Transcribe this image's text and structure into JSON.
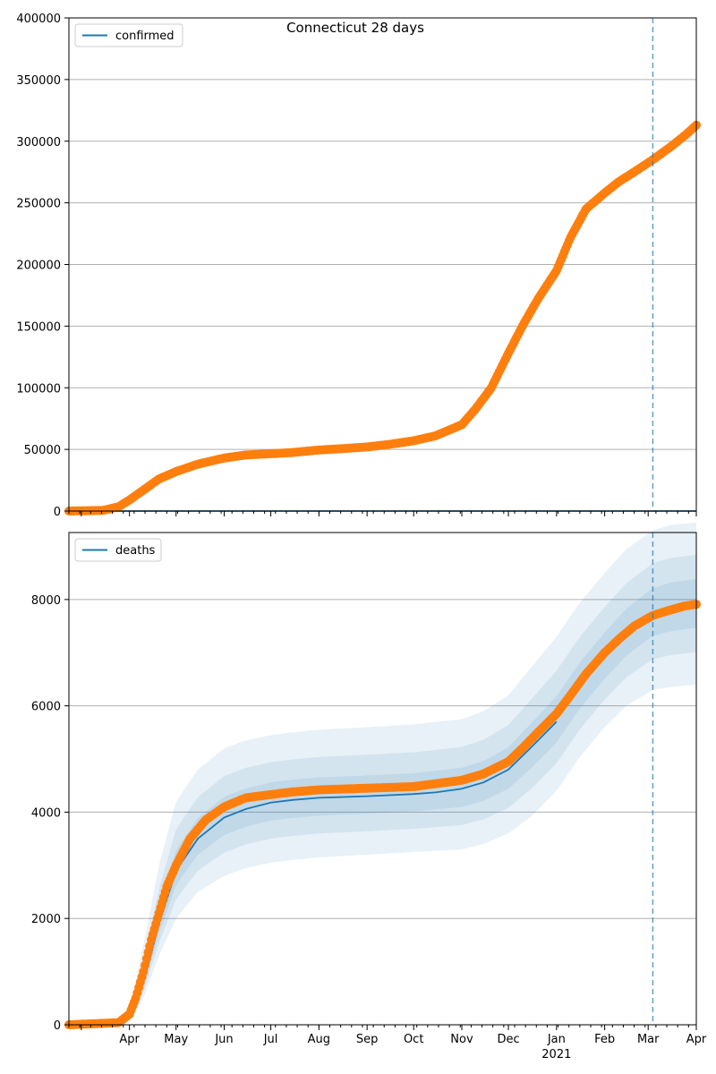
{
  "figure_title": "Connecticut 28 days",
  "chart_data": [
    {
      "type": "line",
      "legend": [
        "confirmed"
      ],
      "legend_placement": "top-left",
      "grid": "horizontal",
      "ylim": [
        0,
        400000
      ],
      "yticks": [
        0,
        50000,
        100000,
        150000,
        200000,
        250000,
        300000,
        350000,
        400000
      ],
      "xlim": [
        "2020-02-22",
        "2021-04-01"
      ],
      "forecast_date": "2021-03-04",
      "series": [
        {
          "name": "confirmed",
          "kind": "model-line",
          "color": "#1f77b4",
          "dates": [
            "2020-02-22",
            "2021-04-01"
          ],
          "values": [
            0,
            0
          ]
        },
        {
          "kind": "observed-points",
          "color": "#ff7f0e",
          "dates": [
            "2020-02-22",
            "2020-03-15",
            "2020-03-25",
            "2020-04-01",
            "2020-04-10",
            "2020-04-20",
            "2020-05-01",
            "2020-05-15",
            "2020-06-01",
            "2020-06-15",
            "2020-07-01",
            "2020-07-15",
            "2020-08-01",
            "2020-08-15",
            "2020-09-01",
            "2020-09-15",
            "2020-10-01",
            "2020-10-15",
            "2020-11-01",
            "2020-11-10",
            "2020-11-20",
            "2020-12-01",
            "2020-12-10",
            "2020-12-20",
            "2021-01-01",
            "2021-01-10",
            "2021-01-20",
            "2021-02-01",
            "2021-02-10",
            "2021-02-20",
            "2021-03-04",
            "2021-03-15",
            "2021-03-25",
            "2021-04-01"
          ],
          "values": [
            0,
            500,
            3500,
            9000,
            17000,
            26000,
            32000,
            38000,
            43000,
            45500,
            46500,
            47500,
            49500,
            50500,
            52000,
            54000,
            57000,
            61000,
            70000,
            83000,
            100000,
            128000,
            150000,
            172000,
            195000,
            222000,
            245000,
            258000,
            267000,
            275000,
            285000,
            295000,
            305000,
            313000
          ]
        }
      ]
    },
    {
      "type": "line",
      "legend": [
        "deaths"
      ],
      "legend_placement": "top-left",
      "grid": "horizontal",
      "ylim": [
        0,
        9260
      ],
      "yticks": [
        0,
        2000,
        4000,
        6000,
        8000
      ],
      "xlim": [
        "2020-02-22",
        "2021-04-01"
      ],
      "forecast_date": "2021-03-04",
      "x_tick_labels": [
        "Apr",
        "May",
        "Jun",
        "Jul",
        "Aug",
        "Sep",
        "Oct",
        "Nov",
        "Dec",
        "Jan",
        "Feb",
        "Mar",
        "Apr"
      ],
      "x_year_label": "2021",
      "series": [
        {
          "name": "deaths",
          "kind": "model-median",
          "color": "#1f77b4",
          "dates": [
            "2020-02-22",
            "2020-03-20",
            "2020-04-01",
            "2020-04-10",
            "2020-04-20",
            "2020-05-01",
            "2020-05-15",
            "2020-06-01",
            "2020-06-15",
            "2020-07-01",
            "2020-07-15",
            "2020-08-01",
            "2020-09-01",
            "2020-10-01",
            "2020-10-15",
            "2020-11-01",
            "2020-11-15",
            "2020-12-01",
            "2020-12-15",
            "2021-01-01"
          ],
          "values": [
            0,
            20,
            150,
            800,
            1900,
            2900,
            3500,
            3900,
            4060,
            4180,
            4230,
            4270,
            4300,
            4340,
            4370,
            4440,
            4560,
            4800,
            5200,
            5700
          ]
        },
        {
          "kind": "uncertainty-band",
          "color": "#1f77b4",
          "dates": [
            "2020-02-22",
            "2020-03-20",
            "2020-04-01",
            "2020-04-10",
            "2020-04-20",
            "2020-05-01",
            "2020-05-15",
            "2020-06-01",
            "2020-06-15",
            "2020-07-01",
            "2020-07-15",
            "2020-08-01",
            "2020-09-01",
            "2020-10-01",
            "2020-11-01",
            "2020-11-15",
            "2020-12-01",
            "2020-12-15",
            "2021-01-01",
            "2021-01-15",
            "2021-02-01",
            "2021-02-15",
            "2021-03-04",
            "2021-03-15",
            "2021-04-01"
          ],
          "median": [
            0,
            20,
            150,
            800,
            1900,
            2900,
            3500,
            3900,
            4060,
            4180,
            4230,
            4270,
            4300,
            4340,
            4440,
            4560,
            4800,
            5200,
            5700,
            6300,
            6900,
            7350,
            7750,
            7850,
            7930
          ],
          "lower": [
            0,
            10,
            100,
            500,
            1300,
            2000,
            2500,
            2800,
            2950,
            3050,
            3100,
            3150,
            3200,
            3250,
            3300,
            3400,
            3600,
            3900,
            4400,
            5000,
            5600,
            6000,
            6300,
            6350,
            6400
          ],
          "upper": [
            0,
            40,
            300,
            1500,
            3000,
            4200,
            4800,
            5200,
            5350,
            5450,
            5500,
            5550,
            5600,
            5650,
            5750,
            5900,
            6200,
            6700,
            7300,
            7900,
            8500,
            8950,
            9300,
            9400,
            9450
          ]
        },
        {
          "kind": "observed-points",
          "color": "#ff7f0e",
          "dates": [
            "2020-02-22",
            "2020-03-25",
            "2020-04-01",
            "2020-04-05",
            "2020-04-10",
            "2020-04-15",
            "2020-04-20",
            "2020-04-25",
            "2020-05-01",
            "2020-05-10",
            "2020-05-20",
            "2020-06-01",
            "2020-06-15",
            "2020-07-01",
            "2020-07-15",
            "2020-08-01",
            "2020-09-01",
            "2020-10-01",
            "2020-11-01",
            "2020-11-15",
            "2020-12-01",
            "2020-12-10",
            "2020-12-20",
            "2021-01-01",
            "2021-01-10",
            "2021-01-20",
            "2021-02-01",
            "2021-02-10",
            "2021-02-20",
            "2021-03-04",
            "2021-03-15",
            "2021-03-25",
            "2021-04-01"
          ],
          "values": [
            0,
            40,
            200,
            500,
            1000,
            1600,
            2100,
            2600,
            3000,
            3500,
            3850,
            4100,
            4270,
            4330,
            4380,
            4420,
            4450,
            4480,
            4600,
            4720,
            4950,
            5200,
            5500,
            5850,
            6200,
            6600,
            7000,
            7250,
            7500,
            7700,
            7800,
            7880,
            7910
          ]
        }
      ]
    }
  ]
}
